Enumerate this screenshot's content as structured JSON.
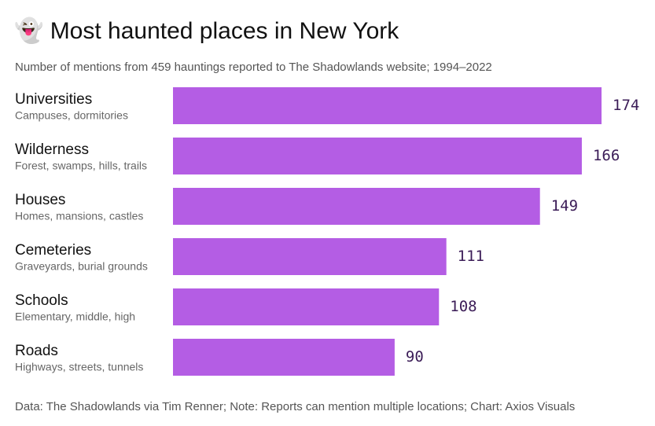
{
  "chart_data": {
    "type": "bar",
    "orientation": "horizontal",
    "title": "👻 Most haunted places in New York",
    "subtitle": "Number of mentions from 459 hauntings reported to The Shadowlands website; 1994–2022",
    "categories": [
      "Universities",
      "Wilderness",
      "Houses",
      "Cemeteries",
      "Schools",
      "Roads"
    ],
    "descriptions": [
      "Campuses, dormitories",
      "Forest, swamps, hills, trails",
      "Homes, mansions, castles",
      "Graveyards, burial grounds",
      "Elementary, middle, high",
      "Highways, streets, tunnels"
    ],
    "values": [
      174,
      166,
      149,
      111,
      108,
      90
    ],
    "color": "#b45de4",
    "footer": "Data: The Shadowlands via Tim Renner; Note: Reports can mention multiple locations; Chart: Axios Visuals"
  }
}
